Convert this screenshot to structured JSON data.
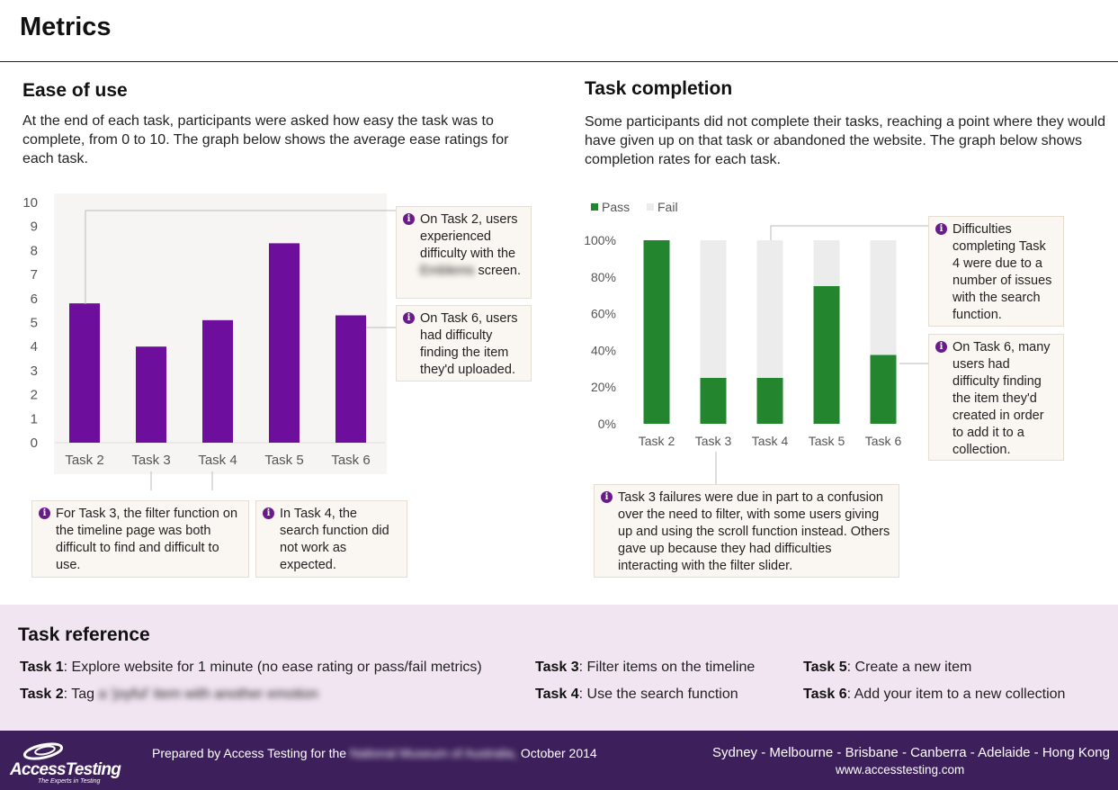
{
  "header": {
    "title": "Metrics"
  },
  "ease": {
    "title": "Ease of use",
    "description": "At the end of each task, participants were asked how easy the task was to complete, from 0 to 10. The graph below shows the average ease ratings for each task.",
    "callouts": {
      "task2": {
        "text_before": "On Task 2, users experienced difficulty with the",
        "text_blurred": "Emblems",
        "text_after": "screen."
      },
      "task6": "On Task 6, users had difficulty finding the item they'd uploaded.",
      "task3": "For Task 3, the filter function on the timeline page was both difficult to find and difficult to use.",
      "task4": "In Task 4, the search function did not work as expected."
    }
  },
  "completion": {
    "title": "Task completion",
    "description": "Some participants did not complete their tasks, reaching a point where they would have given up on that task or abandoned the website. The graph below shows completion rates for each task.",
    "callouts": {
      "task4": "Difficulties completing Task 4 were due to a number of issues with the search function.",
      "task6": "On Task 6, many users had difficulty finding the item they'd created in order to add it to a collection.",
      "task3": "Task 3 failures were due in part to a confusion over the need to filter, with some users giving up and using the scroll function instead. Others gave up because they had difficulties interacting with the filter slider."
    }
  },
  "chart_data": [
    {
      "type": "bar",
      "categories": [
        "Task 2",
        "Task 3",
        "Task 4",
        "Task 5",
        "Task 6"
      ],
      "values": [
        5.8,
        4.0,
        5.1,
        8.3,
        5.3
      ],
      "ylim": [
        0,
        10
      ],
      "yticks": [
        "0",
        "1",
        "2",
        "3",
        "4",
        "5",
        "6",
        "7",
        "8",
        "9",
        "10"
      ],
      "grid": false,
      "colors": {
        "bar": "#6e0e9c",
        "plot_bg": "#f6f5f4"
      }
    },
    {
      "type": "bar",
      "stacked": true,
      "categories": [
        "Task 2",
        "Task 3",
        "Task 4",
        "Task 5",
        "Task 6"
      ],
      "series": [
        {
          "name": "Pass",
          "values": [
            100,
            25,
            25,
            75,
            37.5
          ],
          "color": "#23862f"
        },
        {
          "name": "Fail",
          "values": [
            0,
            75,
            75,
            25,
            62.5
          ],
          "color": "#ececec"
        }
      ],
      "ylim": [
        0,
        100
      ],
      "yticks": [
        "0%",
        "20%",
        "40%",
        "60%",
        "80%",
        "100%"
      ],
      "legend": "top-left",
      "grid": false
    }
  ],
  "reference": {
    "title": "Task reference",
    "items": [
      {
        "key": "Task 1",
        "text": ": Explore website for 1 minute (no ease rating or pass/fail metrics)",
        "blurred": ""
      },
      {
        "key": "Task 2",
        "text": ": Tag",
        "blurred": "a 'joyful' item with another emotion"
      },
      {
        "key": "Task 3",
        "text": ": Filter items on the timeline",
        "blurred": ""
      },
      {
        "key": "Task 4",
        "text": ": Use the search function",
        "blurred": ""
      },
      {
        "key": "Task 5",
        "text": ": Create a new item",
        "blurred": ""
      },
      {
        "key": "Task 6",
        "text": ": Add your item to a new collection",
        "blurred": ""
      }
    ]
  },
  "footer": {
    "logo_text": "AccessTesting",
    "logo_tagline": "The Experts in Testing",
    "prepared_before": "Prepared by Access Testing for the",
    "prepared_blurred": "National Museum of Australia,",
    "prepared_after": "October 2014",
    "cities": "Sydney - Melbourne - Brisbane - Canberra - Adelaide - Hong Kong",
    "url": "www.accesstesting.com",
    "brand_color": "#3d1f5b"
  }
}
